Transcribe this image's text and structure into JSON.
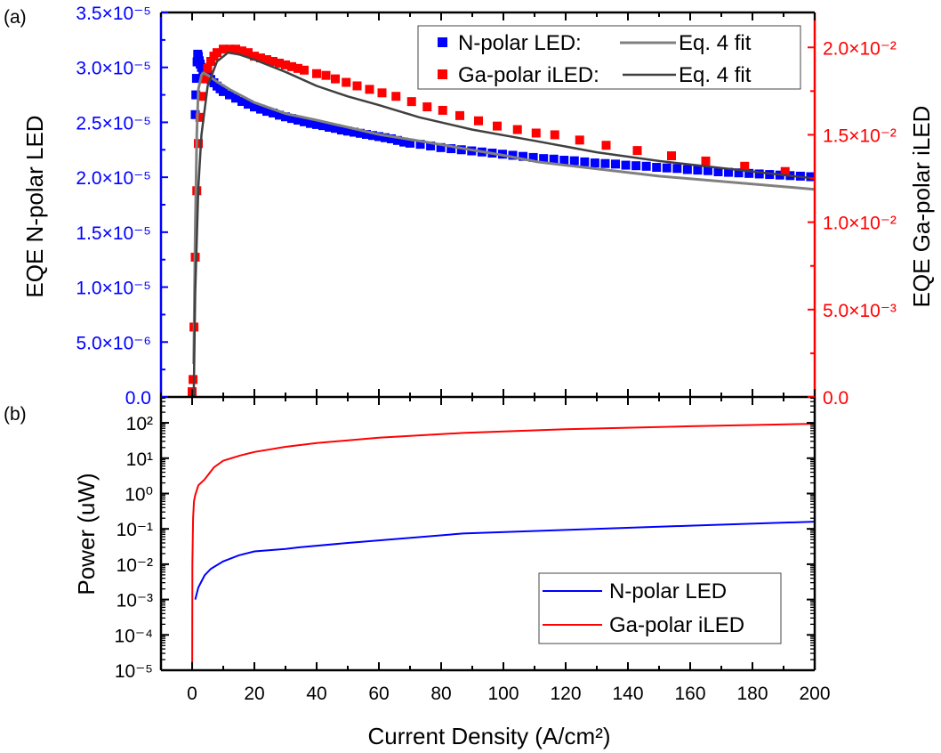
{
  "chart_data": [
    {
      "panel_label": "(a)",
      "type": "scatter",
      "x_axis": {
        "range": [
          -10,
          200
        ],
        "ticks": [
          0,
          20,
          40,
          60,
          80,
          100,
          120,
          140,
          160,
          180,
          200
        ],
        "minor_ticks": [
          -10,
          10,
          30,
          50,
          70,
          90,
          110,
          130,
          150,
          170,
          190
        ]
      },
      "y_left": {
        "label": "EQE N-polar LED",
        "color": "#0000ff",
        "range": [
          0,
          3.5e-05
        ],
        "ticks": [
          {
            "value": 0,
            "label": "0.0"
          },
          {
            "value": 5e-06,
            "label": "5.0×10⁻⁶"
          },
          {
            "value": 1e-05,
            "label": "1.0×10⁻⁵"
          },
          {
            "value": 1.5e-05,
            "label": "1.5×10⁻⁵"
          },
          {
            "value": 2e-05,
            "label": "2.0×10⁻⁵"
          },
          {
            "value": 2.5e-05,
            "label": "2.5×10⁻⁵"
          },
          {
            "value": 3e-05,
            "label": "3.0×10⁻⁵"
          },
          {
            "value": 3.5e-05,
            "label": "3.5×10⁻⁵"
          }
        ]
      },
      "y_right": {
        "label": "EQE Ga-polar iLED",
        "color": "#ff0000",
        "range": [
          0,
          0.022
        ],
        "ticks": [
          {
            "value": 0,
            "label": "0.0"
          },
          {
            "value": 0.005,
            "label": "5.0×10⁻³"
          },
          {
            "value": 0.01,
            "label": "1.0×10⁻²"
          },
          {
            "value": 0.015,
            "label": "1.5×10⁻²"
          },
          {
            "value": 0.02,
            "label": "2.0×10⁻²"
          }
        ]
      },
      "legend": {
        "placement": "top-right",
        "rows": [
          {
            "marker_label": "N-polar LED:",
            "line_label": "Eq. 4 fit"
          },
          {
            "marker_label": "Ga-polar iLED:",
            "line_label": "Eq. 4 fit"
          }
        ]
      },
      "series": [
        {
          "name": "N-polar LED",
          "kind": "markers",
          "axis": "left",
          "color": "#0000ff",
          "x": [
            1.0,
            1.2,
            1.4,
            1.6,
            1.8,
            2.0,
            2.3,
            2.6,
            3,
            3.5,
            4,
            4.5,
            5,
            6,
            7,
            8,
            9,
            10,
            12,
            14,
            16,
            18,
            20,
            22,
            24,
            26,
            28,
            30,
            32,
            34,
            36,
            38,
            40,
            42,
            44,
            46,
            48,
            50,
            52,
            54,
            56,
            58,
            60,
            62,
            64,
            66,
            68,
            70,
            73.3,
            76.6,
            79.9,
            83.2,
            86.5,
            89.8,
            93.1,
            96.4,
            99.7,
            103,
            106.3,
            109.6,
            112.9,
            116.2,
            119.5,
            122.8,
            126.1,
            129.4,
            132.7,
            136,
            139.3,
            142.6,
            145.9,
            149.2,
            152.5,
            155.8,
            159.1,
            162.4,
            165.7,
            169,
            172.3,
            175.6,
            178.9,
            182.2,
            185.5,
            188.8,
            192.1,
            195.4,
            198.7
          ],
          "y": [
            2.57e-05,
            2.75e-05,
            2.9e-05,
            3.05e-05,
            3.12e-05,
            3.1e-05,
            3.06e-05,
            3.03e-05,
            3e-05,
            2.97e-05,
            2.95e-05,
            2.93e-05,
            2.92e-05,
            2.89e-05,
            2.86e-05,
            2.83e-05,
            2.805e-05,
            2.78e-05,
            2.75e-05,
            2.72e-05,
            2.69e-05,
            2.665e-05,
            2.64e-05,
            2.62e-05,
            2.6e-05,
            2.585e-05,
            2.565e-05,
            2.55e-05,
            2.535e-05,
            2.52e-05,
            2.505e-05,
            2.49e-05,
            2.48e-05,
            2.47e-05,
            2.455e-05,
            2.445e-05,
            2.43e-05,
            2.42e-05,
            2.41e-05,
            2.4e-05,
            2.39e-05,
            2.38e-05,
            2.37e-05,
            2.36e-05,
            2.35e-05,
            2.335e-05,
            2.32e-05,
            2.31e-05,
            2.3e-05,
            2.285e-05,
            2.27e-05,
            2.26e-05,
            2.25e-05,
            2.24e-05,
            2.23e-05,
            2.22e-05,
            2.21e-05,
            2.2e-05,
            2.19e-05,
            2.18e-05,
            2.17e-05,
            2.165e-05,
            2.155e-05,
            2.15e-05,
            2.14e-05,
            2.13e-05,
            2.125e-05,
            2.12e-05,
            2.11e-05,
            2.105e-05,
            2.1e-05,
            2.09e-05,
            2.085e-05,
            2.08e-05,
            2.07e-05,
            2.065e-05,
            2.06e-05,
            2.05e-05,
            2.045e-05,
            2.04e-05,
            2.035e-05,
            2.03e-05,
            2.025e-05,
            2.02e-05,
            2.015e-05,
            2.01e-05,
            2.005e-05
          ]
        },
        {
          "name": "Ga-polar iLED",
          "kind": "markers",
          "axis": "right",
          "color": "#ff0000",
          "x": [
            0,
            0.3,
            0.6,
            1,
            1.5,
            2,
            2.5,
            3,
            4,
            5,
            6,
            7,
            8,
            10,
            12,
            14,
            16,
            18,
            20,
            22,
            24,
            26,
            28,
            30,
            32,
            34,
            36,
            40,
            43,
            46,
            49.5,
            53,
            57,
            61,
            65.5,
            70.5,
            75.5,
            80.5,
            86,
            92,
            98,
            104.5,
            110.5,
            116.5,
            124.5,
            133,
            143,
            154,
            165,
            177.5,
            190.5
          ],
          "y": [
            0.0003,
            0.001,
            0.004,
            0.008,
            0.0118,
            0.0145,
            0.016,
            0.0172,
            0.0182,
            0.0188,
            0.0192,
            0.0195,
            0.0197,
            0.0199,
            0.0199,
            0.0199,
            0.0198,
            0.0197,
            0.0195,
            0.0194,
            0.0193,
            0.0192,
            0.0191,
            0.019,
            0.0189,
            0.0188,
            0.0187,
            0.0185,
            0.0184,
            0.0182,
            0.018,
            0.0178,
            0.0176,
            0.0174,
            0.0172,
            0.0169,
            0.0166,
            0.0164,
            0.0161,
            0.0158,
            0.0155,
            0.0153,
            0.0151,
            0.015,
            0.0147,
            0.0144,
            0.0141,
            0.0138,
            0.0135,
            0.0132,
            0.0129
          ]
        },
        {
          "name": "N-polar LED Eq. 4 fit",
          "kind": "line",
          "axis": "left",
          "color": "#808080",
          "x": [
            0.5,
            1,
            1.5,
            2,
            3,
            3.5,
            5,
            8,
            12,
            20,
            30,
            40,
            60,
            73,
            100,
            111,
            150,
            200
          ],
          "y": [
            3e-06,
            1.5e-05,
            2.4e-05,
            2.8e-05,
            2.93e-05,
            2.95e-05,
            2.93e-05,
            2.87e-05,
            2.8e-05,
            2.68e-05,
            2.58e-05,
            2.52e-05,
            2.39e-05,
            2.33e-05,
            2.2e-05,
            2.14e-05,
            2.01e-05,
            1.89e-05
          ]
        },
        {
          "name": "Ga-polar iLED Eq. 4 fit",
          "kind": "line",
          "axis": "right",
          "color": "#404040",
          "x": [
            0.5,
            1,
            2,
            3,
            5,
            8,
            11.5,
            15,
            20,
            30,
            40,
            50,
            60,
            73,
            90,
            110.8,
            130,
            150,
            175,
            200
          ],
          "y": [
            0,
            0.006,
            0.012,
            0.015,
            0.0178,
            0.0192,
            0.0197,
            0.0196,
            0.0193,
            0.0186,
            0.0178,
            0.0172,
            0.0167,
            0.016,
            0.0153,
            0.01463,
            0.014,
            0.0135,
            0.013,
            0.0125
          ]
        }
      ]
    },
    {
      "panel_label": "(b)",
      "type": "line",
      "x_axis": {
        "label": "Current Density (A/cm²)",
        "range": [
          -10,
          200
        ],
        "ticks": [
          0,
          20,
          40,
          60,
          80,
          100,
          120,
          140,
          160,
          180,
          200
        ],
        "tick_labels": [
          "0",
          "20",
          "40",
          "60",
          "80",
          "100",
          "120",
          "140",
          "160",
          "180",
          "200"
        ],
        "minor_ticks": [
          -10,
          10,
          30,
          50,
          70,
          90,
          110,
          130,
          150,
          170,
          190
        ]
      },
      "y_axis": {
        "label": "Power (uW)",
        "scale": "log",
        "range": [
          1e-05,
          540
        ],
        "ticks": [
          {
            "value": 1e-05,
            "label": "10⁻⁵"
          },
          {
            "value": 0.0001,
            "label": "10⁻⁴"
          },
          {
            "value": 0.001,
            "label": "10⁻³"
          },
          {
            "value": 0.01,
            "label": "10⁻²"
          },
          {
            "value": 0.1,
            "label": "10⁻¹"
          },
          {
            "value": 1,
            "label": "10⁰"
          },
          {
            "value": 10,
            "label": "10¹"
          },
          {
            "value": 100,
            "label": "10²"
          }
        ]
      },
      "legend": {
        "placement": "bottom-right",
        "entries": [
          "N-polar LED",
          "Ga-polar iLED"
        ]
      },
      "series": [
        {
          "name": "N-polar LED",
          "color": "#0000ff",
          "x": [
            1,
            2,
            4,
            6,
            10,
            15,
            20,
            30,
            34.5,
            50,
            87,
            120,
            160,
            200
          ],
          "y": [
            0.001,
            0.0022,
            0.0048,
            0.0074,
            0.012,
            0.0178,
            0.023,
            0.027,
            0.03,
            0.04,
            0.074,
            0.093,
            0.123,
            0.16
          ]
        },
        {
          "name": "Ga-polar iLED",
          "color": "#ff0000",
          "x": [
            0.02,
            0.1,
            0.3,
            0.6,
            1,
            2,
            4,
            7,
            10,
            15.4,
            20,
            30,
            40,
            60,
            87,
            120,
            160,
            200
          ],
          "y": [
            1e-05,
            0.01,
            0.2,
            0.6,
            0.9,
            1.7,
            2.5,
            5.5,
            8.5,
            11.9,
            15,
            21,
            27,
            38,
            52,
            66,
            80,
            94
          ]
        }
      ]
    }
  ]
}
